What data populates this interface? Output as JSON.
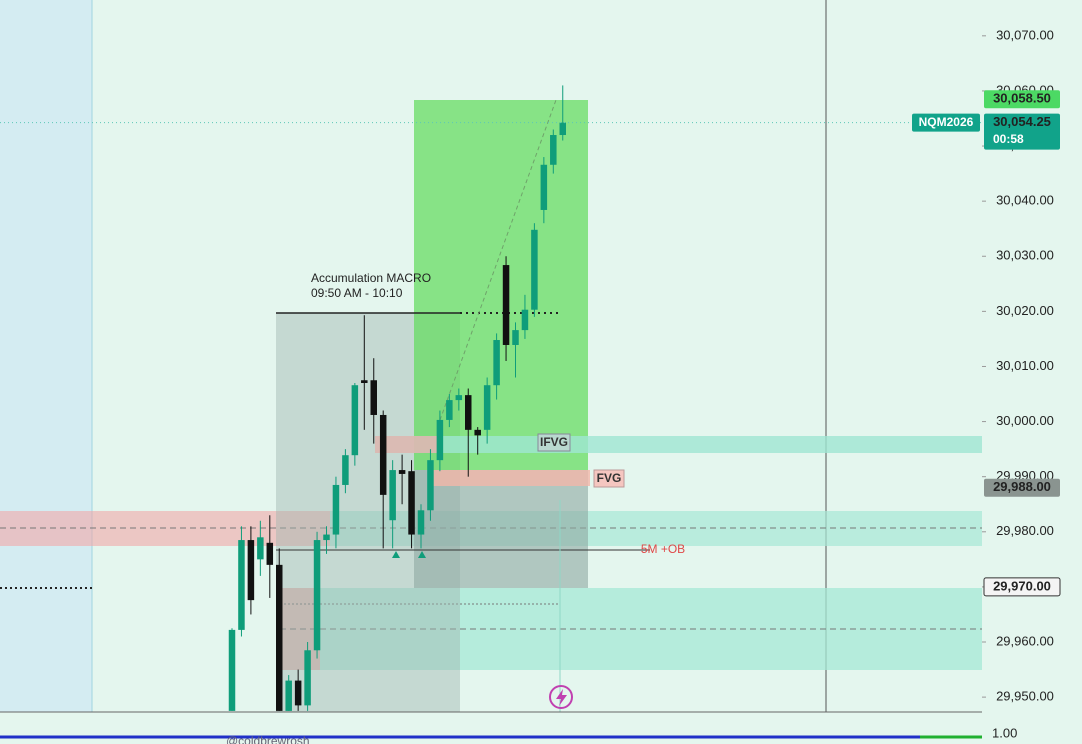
{
  "chart_data": {
    "type": "candlestick",
    "symbol": "NQM2026",
    "countdown": "00:58",
    "annotations": {
      "macro_title": "Accumulation MACRO",
      "macro_time": "09:50 AM - 10:10",
      "ifvg": "IFVG",
      "fvg": "FVG",
      "ob": "5M +OB"
    },
    "watermark": "@coldbrewrosh",
    "lower_pane_label": "1.00",
    "up_color": "#0f9d7a",
    "down_color": "#111111",
    "categories": [
      null,
      null,
      null,
      null,
      null,
      null,
      null,
      null,
      null,
      null,
      null,
      null,
      null,
      null,
      null,
      null,
      null,
      null,
      null,
      null,
      null,
      null,
      null,
      null,
      null,
      null,
      null,
      null,
      null,
      null,
      null,
      null,
      null,
      null,
      null,
      null
    ],
    "open": [
      29947.5,
      29962.2,
      29978.5,
      29975,
      29978,
      29974,
      29947.5,
      29953,
      29948.5,
      29958.5,
      29978.5,
      29979.5,
      29988.5,
      29993.9,
      30007.5,
      30007.5,
      30001.2,
      29982.1,
      29991.2,
      29991,
      29979.5,
      29983.9,
      29993,
      30000.3,
      30003.9,
      30004.8,
      29998.5,
      29998.5,
      30006.6,
      30028.4,
      30013.9,
      30016.6,
      30020.3,
      30038.4,
      30046.6,
      30052
    ],
    "high": [
      29962.5,
      29981,
      29981,
      29982,
      29983,
      29977,
      29954,
      29955,
      29960,
      29980,
      29981,
      29990,
      29995,
      30007,
      30019.3,
      30011.5,
      30002,
      29993,
      29994,
      29993,
      29985,
      29995,
      30002,
      30005,
      30006,
      30006,
      29999,
      30008,
      30016,
      30030,
      30018,
      30023,
      30036,
      30048,
      30053,
      30061
    ],
    "low": [
      29947.5,
      29961,
      29965,
      29972,
      29968,
      29947.5,
      29947.5,
      29947.5,
      29947.5,
      29957,
      29976,
      29977,
      29987,
      29992,
      29998.5,
      29996,
      29977,
      29977,
      29985,
      29977,
      29977,
      29982,
      29991,
      29999,
      30002,
      29990,
      29994,
      29996,
      30004,
      30011,
      30008,
      30015,
      30019,
      30036,
      30045,
      30051
    ],
    "close": [
      29962.2,
      29978.5,
      29967.6,
      29979,
      29974,
      29947.5,
      29953,
      29948.5,
      29958.5,
      29978.5,
      29979.5,
      29988.5,
      29993.9,
      30006.6,
      30007,
      30001.2,
      29986.7,
      29991.2,
      29990.5,
      29979.5,
      29983.9,
      29993,
      30000.3,
      30003.9,
      30004.8,
      29998.5,
      29997.5,
      30006.6,
      30014.8,
      30013.9,
      30016.6,
      30020.3,
      30034.8,
      30046.6,
      30052,
      30054.25
    ],
    "ylim": [
      29947.3,
      30076.5
    ],
    "yticks": [
      {
        "value": 29950,
        "label": "29,950.00"
      },
      {
        "value": 29960,
        "label": "29,960.00"
      },
      {
        "value": 29970,
        "label": "29,970.00"
      },
      {
        "value": 29980,
        "label": "29,980.00"
      },
      {
        "value": 29990,
        "label": "29,990.00"
      },
      {
        "value": 30000,
        "label": "30,000.00"
      },
      {
        "value": 30010,
        "label": "30,010.00"
      },
      {
        "value": 30020,
        "label": "30,020.00"
      },
      {
        "value": 30030,
        "label": "30,030.00"
      },
      {
        "value": 30040,
        "label": "30,040.00"
      },
      {
        "value": 30050,
        "label": "30,050.00"
      },
      {
        "value": 30060,
        "label": "30,060.00"
      },
      {
        "value": 30070,
        "label": "30,070.00"
      }
    ],
    "price_tags": [
      {
        "value": 30058.5,
        "label": "30,058.50",
        "color": "#4cd964",
        "text_color": "#ffffff"
      },
      {
        "value": 30054.25,
        "label": "30,054.25",
        "color": "#11a38a",
        "text_color": "#ffffff"
      },
      {
        "value": 29988,
        "label": "29,988.00",
        "color": "#8a9490",
        "text_color": "#ffffff"
      },
      {
        "value": 29970,
        "label": "29,970.00",
        "color": "#f4f4f4",
        "text_color": "#111111"
      }
    ]
  }
}
